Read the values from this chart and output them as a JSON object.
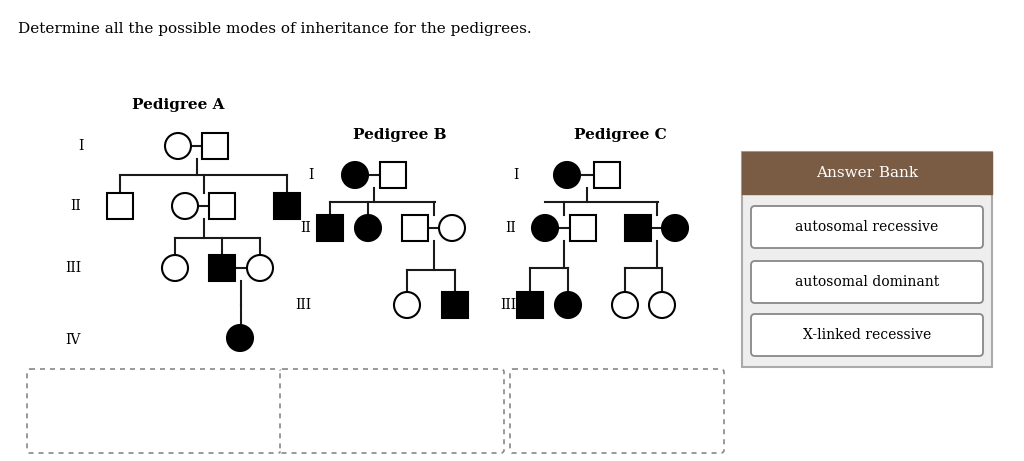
{
  "title": "Determine all the possible modes of inheritance for the pedigrees.",
  "pedigree_titles": [
    "Pedigree A",
    "Pedigree B",
    "Pedigree C"
  ],
  "answer_bank_title": "Answer Bank",
  "answer_bank_items": [
    "autosomal recessive",
    "autosomal dominant",
    "X-linked recessive"
  ],
  "background_color": "#ffffff",
  "line_color": "#1a1a1a",
  "answer_bank_header_color": "#7a5c45",
  "answer_bank_header_text_color": "#ffffff",
  "answer_bank_bg": "#eeeeee"
}
